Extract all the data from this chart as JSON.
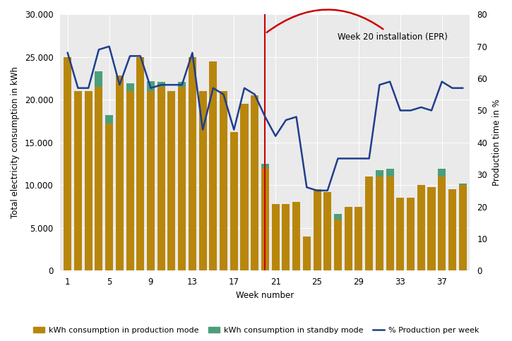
{
  "weeks": [
    1,
    2,
    3,
    4,
    5,
    6,
    7,
    8,
    9,
    10,
    11,
    12,
    13,
    14,
    15,
    16,
    17,
    18,
    19,
    20,
    21,
    22,
    23,
    24,
    25,
    26,
    27,
    28,
    29,
    30,
    31,
    32,
    33,
    34,
    35,
    36,
    37,
    38,
    39
  ],
  "production_kwh": [
    25000,
    21000,
    21000,
    21500,
    17200,
    22800,
    21000,
    25000,
    21000,
    21500,
    21000,
    21500,
    25000,
    21000,
    24500,
    21000,
    16200,
    19500,
    20500,
    12000,
    7800,
    7800,
    8000,
    4000,
    9500,
    9200,
    6000,
    7500,
    7500,
    11000,
    11000,
    11000,
    8500,
    8500,
    10000,
    9800,
    11000,
    9500,
    10000
  ],
  "standby_kwh": [
    0,
    0,
    0,
    1800,
    1000,
    0,
    900,
    0,
    1200,
    600,
    0,
    600,
    0,
    0,
    0,
    0,
    0,
    0,
    0,
    500,
    0,
    0,
    0,
    0,
    0,
    0,
    600,
    0,
    0,
    0,
    800,
    900,
    0,
    0,
    0,
    0,
    900,
    0,
    200
  ],
  "pct_production": [
    68,
    57,
    57,
    69,
    70,
    58,
    67,
    67,
    57,
    58,
    58,
    58,
    68,
    44,
    57,
    55,
    44,
    57,
    55,
    48,
    42,
    47,
    48,
    26,
    25,
    25,
    35,
    35,
    35,
    35,
    58,
    59,
    50,
    50,
    51,
    50,
    59,
    57,
    57
  ],
  "bar_color_production": "#B8860B",
  "bar_color_standby": "#4D9E7A",
  "line_color": "#1F3E8C",
  "redline_color": "#CC0000",
  "annotation_text": "Week 20 installation (EPR)",
  "xlabel": "Week number",
  "ylabel_left": "Total electricity consumption in kWh",
  "ylabel_right": "Production time in %",
  "ylim_left": [
    0,
    30000
  ],
  "ylim_right": [
    0,
    80
  ],
  "yticks_left": [
    0,
    5000,
    10000,
    15000,
    20000,
    25000,
    30000
  ],
  "yticks_right": [
    0,
    10,
    20,
    30,
    40,
    50,
    60,
    70,
    80
  ],
  "xticks": [
    1,
    5,
    9,
    13,
    17,
    21,
    25,
    29,
    33,
    37
  ],
  "legend_labels": [
    "kWh consumption in production mode",
    "kWh consumption in standby mode",
    "% Production per week"
  ],
  "background_color": "#EAEAEA",
  "vline_week": 20,
  "figsize": [
    7.25,
    4.83
  ],
  "dpi": 100
}
